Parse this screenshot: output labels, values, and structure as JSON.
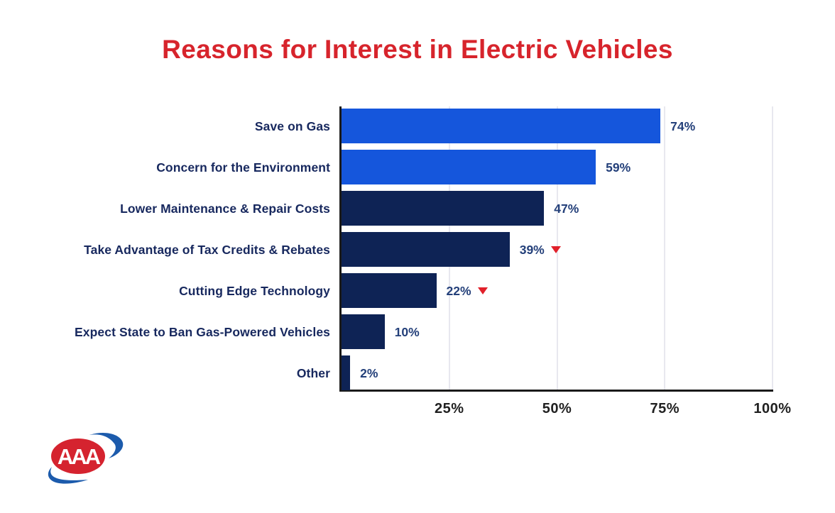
{
  "chart_data": {
    "type": "bar",
    "orientation": "horizontal",
    "title": "Reasons for Interest in Electric Vehicles",
    "categories": [
      "Save on Gas",
      "Concern for the Environment",
      "Lower Maintenance & Repair Costs",
      "Take Advantage of Tax Credits & Rebates",
      "Cutting Edge Technology",
      "Expect State to Ban Gas-Powered Vehicles",
      "Other"
    ],
    "values": [
      74,
      59,
      47,
      39,
      22,
      10,
      2
    ],
    "value_labels": [
      "74%",
      "59%",
      "47%",
      "39%",
      "22%",
      "10%",
      "2%"
    ],
    "decrease_marker": [
      false,
      false,
      false,
      true,
      true,
      false,
      false
    ],
    "bar_colors": [
      "#1556dc",
      "#1556dc",
      "#0e2355",
      "#0e2355",
      "#0e2355",
      "#0e2355",
      "#0e2355"
    ],
    "xlabel": "",
    "ylabel": "",
    "xlim": [
      0,
      100
    ],
    "x_ticks": [
      "25%",
      "50%",
      "75%",
      "100%"
    ],
    "x_tick_values": [
      25,
      50,
      75,
      100
    ],
    "grid": true,
    "legend": false
  },
  "colors": {
    "title_red": "#d7242c",
    "bright_blue": "#1556dc",
    "dark_navy": "#0e2355",
    "label_text": "#17285e",
    "value_text": "#24407a",
    "tick_text": "#212121",
    "gridline": "#e8e8ef",
    "axis_line": "#1a1a1a",
    "marker_red": "#e1202a",
    "logo_red": "#d5232f",
    "logo_blue": "#1c5bac"
  },
  "logo": {
    "name": "AAA",
    "text": "AAA"
  }
}
